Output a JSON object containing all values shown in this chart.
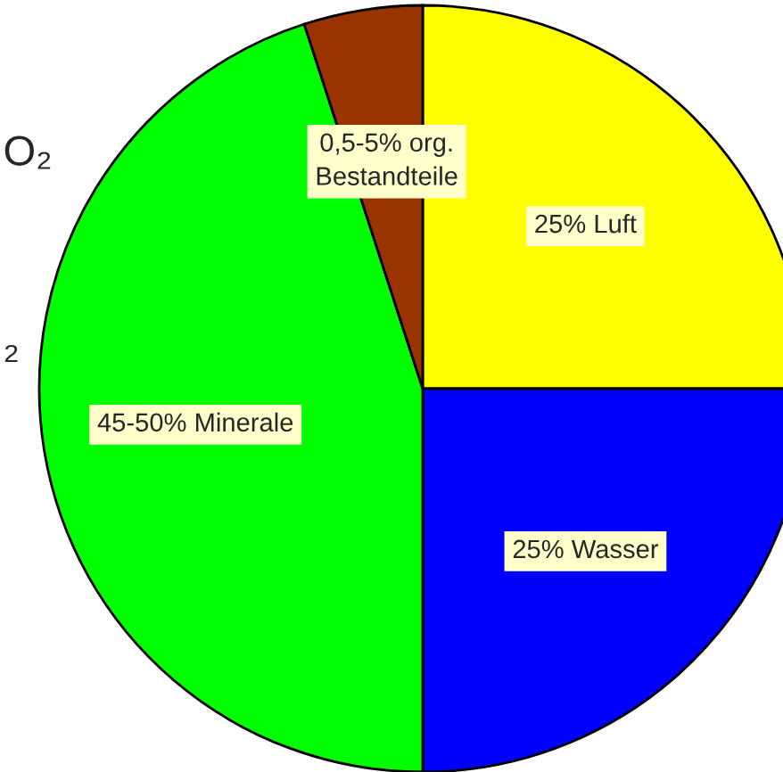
{
  "chart_data": {
    "type": "pie",
    "categories": [
      "25% Luft",
      "25% Wasser",
      "45-50% Minerale",
      "0,5-5% org.\nBestandteile"
    ],
    "values": [
      25,
      25,
      45,
      5
    ],
    "colors": [
      "#ffff00",
      "#0000ff",
      "#00ff00",
      "#993300"
    ],
    "annotations": [
      "O₂",
      "₂"
    ]
  }
}
